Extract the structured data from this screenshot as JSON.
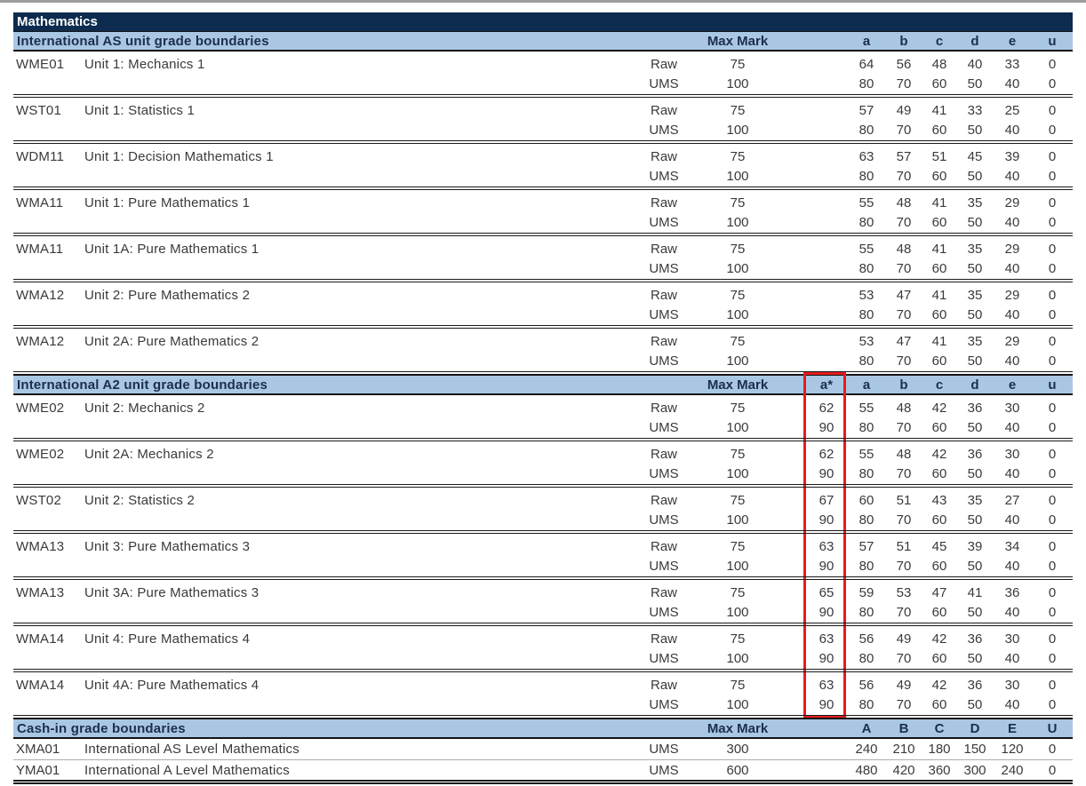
{
  "document_title": "Mathematics",
  "highlight_box": {
    "color": "#e51c1c",
    "highlights": "a* column"
  },
  "colors": {
    "title_bar": "#0d2b4e",
    "section_bar": "#a9c7e3"
  },
  "sections": [
    {
      "header": "International AS unit grade boundaries",
      "max_mark_label": "Max Mark",
      "grade_headers": [
        "a",
        "b",
        "c",
        "d",
        "e",
        "u"
      ],
      "units": [
        {
          "code": "WME01",
          "title": "Unit 1: Mechanics 1",
          "rows": [
            {
              "type": "Raw",
              "max": "75",
              "grades": [
                "64",
                "56",
                "48",
                "40",
                "33",
                "0"
              ]
            },
            {
              "type": "UMS",
              "max": "100",
              "grades": [
                "80",
                "70",
                "60",
                "50",
                "40",
                "0"
              ]
            }
          ]
        },
        {
          "code": "WST01",
          "title": "Unit 1: Statistics 1",
          "rows": [
            {
              "type": "Raw",
              "max": "75",
              "grades": [
                "57",
                "49",
                "41",
                "33",
                "25",
                "0"
              ]
            },
            {
              "type": "UMS",
              "max": "100",
              "grades": [
                "80",
                "70",
                "60",
                "50",
                "40",
                "0"
              ]
            }
          ]
        },
        {
          "code": "WDM11",
          "title": "Unit 1: Decision Mathematics 1",
          "rows": [
            {
              "type": "Raw",
              "max": "75",
              "grades": [
                "63",
                "57",
                "51",
                "45",
                "39",
                "0"
              ]
            },
            {
              "type": "UMS",
              "max": "100",
              "grades": [
                "80",
                "70",
                "60",
                "50",
                "40",
                "0"
              ]
            }
          ]
        },
        {
          "code": "WMA11",
          "title": "Unit 1: Pure Mathematics 1",
          "rows": [
            {
              "type": "Raw",
              "max": "75",
              "grades": [
                "55",
                "48",
                "41",
                "35",
                "29",
                "0"
              ]
            },
            {
              "type": "UMS",
              "max": "100",
              "grades": [
                "80",
                "70",
                "60",
                "50",
                "40",
                "0"
              ]
            }
          ]
        },
        {
          "code": "WMA11",
          "title": "Unit 1A: Pure Mathematics 1",
          "rows": [
            {
              "type": "Raw",
              "max": "75",
              "grades": [
                "55",
                "48",
                "41",
                "35",
                "29",
                "0"
              ]
            },
            {
              "type": "UMS",
              "max": "100",
              "grades": [
                "80",
                "70",
                "60",
                "50",
                "40",
                "0"
              ]
            }
          ]
        },
        {
          "code": "WMA12",
          "title": "Unit 2: Pure Mathematics 2",
          "rows": [
            {
              "type": "Raw",
              "max": "75",
              "grades": [
                "53",
                "47",
                "41",
                "35",
                "29",
                "0"
              ]
            },
            {
              "type": "UMS",
              "max": "100",
              "grades": [
                "80",
                "70",
                "60",
                "50",
                "40",
                "0"
              ]
            }
          ]
        },
        {
          "code": "WMA12",
          "title": "Unit 2A: Pure Mathematics 2",
          "rows": [
            {
              "type": "Raw",
              "max": "75",
              "grades": [
                "53",
                "47",
                "41",
                "35",
                "29",
                "0"
              ]
            },
            {
              "type": "UMS",
              "max": "100",
              "grades": [
                "80",
                "70",
                "60",
                "50",
                "40",
                "0"
              ]
            }
          ]
        }
      ]
    },
    {
      "header": "International A2 unit grade boundaries",
      "max_mark_label": "Max Mark",
      "grade_headers": [
        "a*",
        "a",
        "b",
        "c",
        "d",
        "e",
        "u"
      ],
      "units": [
        {
          "code": "WME02",
          "title": "Unit 2: Mechanics 2",
          "rows": [
            {
              "type": "Raw",
              "max": "75",
              "grades": [
                "62",
                "55",
                "48",
                "42",
                "36",
                "30",
                "0"
              ]
            },
            {
              "type": "UMS",
              "max": "100",
              "grades": [
                "90",
                "80",
                "70",
                "60",
                "50",
                "40",
                "0"
              ]
            }
          ]
        },
        {
          "code": "WME02",
          "title": "Unit 2A: Mechanics 2",
          "rows": [
            {
              "type": "Raw",
              "max": "75",
              "grades": [
                "62",
                "55",
                "48",
                "42",
                "36",
                "30",
                "0"
              ]
            },
            {
              "type": "UMS",
              "max": "100",
              "grades": [
                "90",
                "80",
                "70",
                "60",
                "50",
                "40",
                "0"
              ]
            }
          ]
        },
        {
          "code": "WST02",
          "title": "Unit 2: Statistics 2",
          "rows": [
            {
              "type": "Raw",
              "max": "75",
              "grades": [
                "67",
                "60",
                "51",
                "43",
                "35",
                "27",
                "0"
              ]
            },
            {
              "type": "UMS",
              "max": "100",
              "grades": [
                "90",
                "80",
                "70",
                "60",
                "50",
                "40",
                "0"
              ]
            }
          ]
        },
        {
          "code": "WMA13",
          "title": "Unit 3: Pure Mathematics 3",
          "rows": [
            {
              "type": "Raw",
              "max": "75",
              "grades": [
                "63",
                "57",
                "51",
                "45",
                "39",
                "34",
                "0"
              ]
            },
            {
              "type": "UMS",
              "max": "100",
              "grades": [
                "90",
                "80",
                "70",
                "60",
                "50",
                "40",
                "0"
              ]
            }
          ]
        },
        {
          "code": "WMA13",
          "title": "Unit 3A: Pure Mathematics 3",
          "rows": [
            {
              "type": "Raw",
              "max": "75",
              "grades": [
                "65",
                "59",
                "53",
                "47",
                "41",
                "36",
                "0"
              ]
            },
            {
              "type": "UMS",
              "max": "100",
              "grades": [
                "90",
                "80",
                "70",
                "60",
                "50",
                "40",
                "0"
              ]
            }
          ]
        },
        {
          "code": "WMA14",
          "title": "Unit 4: Pure Mathematics 4",
          "rows": [
            {
              "type": "Raw",
              "max": "75",
              "grades": [
                "63",
                "56",
                "49",
                "42",
                "36",
                "30",
                "0"
              ]
            },
            {
              "type": "UMS",
              "max": "100",
              "grades": [
                "90",
                "80",
                "70",
                "60",
                "50",
                "40",
                "0"
              ]
            }
          ]
        },
        {
          "code": "WMA14",
          "title": "Unit 4A: Pure Mathematics 4",
          "rows": [
            {
              "type": "Raw",
              "max": "75",
              "grades": [
                "63",
                "56",
                "49",
                "42",
                "36",
                "30",
                "0"
              ]
            },
            {
              "type": "UMS",
              "max": "100",
              "grades": [
                "90",
                "80",
                "70",
                "60",
                "50",
                "40",
                "0"
              ]
            }
          ]
        }
      ]
    },
    {
      "header": "Cash-in grade boundaries",
      "max_mark_label": "Max Mark",
      "grade_headers": [
        "A",
        "B",
        "C",
        "D",
        "E",
        "U"
      ],
      "units": [
        {
          "code": "XMA01",
          "title": "International AS Level Mathematics",
          "rows": [
            {
              "type": "UMS",
              "max": "300",
              "grades": [
                "240",
                "210",
                "180",
                "150",
                "120",
                "0"
              ]
            }
          ]
        },
        {
          "code": "YMA01",
          "title": "International A Level Mathematics",
          "rows": [
            {
              "type": "UMS",
              "max": "600",
              "grades": [
                "480",
                "420",
                "360",
                "300",
                "240",
                "0"
              ]
            }
          ]
        }
      ]
    }
  ]
}
